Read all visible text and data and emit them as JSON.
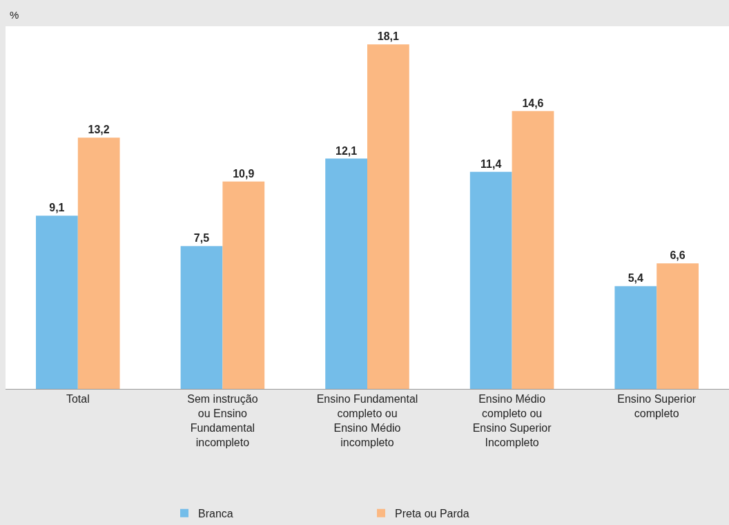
{
  "chart_data": {
    "type": "bar",
    "ylabel": "%",
    "categories": [
      "Total",
      "Sem instrução\nou Ensino\nFundamental\nincompleto",
      "Ensino Fundamental\ncompleto ou\nEnsino Médio\nincompleto",
      "Ensino Médio\ncompleto ou\nEnsino Superior\nIncompleto",
      "Ensino Superior\ncompleto"
    ],
    "series": [
      {
        "name": "Branca",
        "color": "#74bde9",
        "values": [
          9.1,
          7.5,
          12.1,
          11.4,
          5.4
        ],
        "value_labels": [
          "9,1",
          "7,5",
          "12,1",
          "11,4",
          "5,4"
        ]
      },
      {
        "name": "Preta ou Parda",
        "color": "#fbb882",
        "values": [
          13.2,
          10.9,
          18.1,
          14.6,
          6.6
        ],
        "value_labels": [
          "13,2",
          "10,9",
          "18,1",
          "14,6",
          "6,6"
        ]
      }
    ],
    "legend": "bottom"
  }
}
